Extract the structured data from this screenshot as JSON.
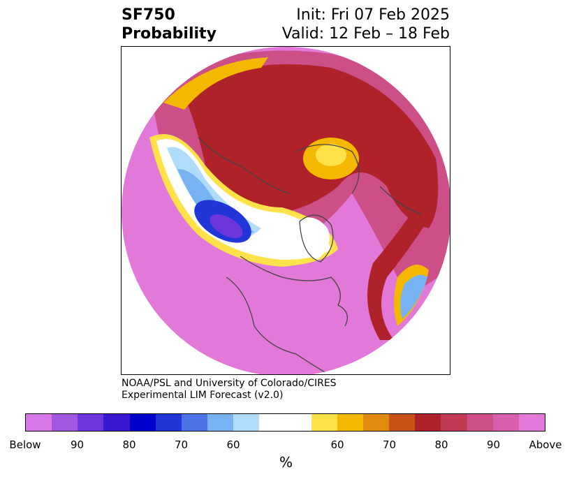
{
  "title": {
    "variable": "SF750",
    "subtitle": "Probability",
    "init": "Init: Fri 07 Feb 2025",
    "valid": "Valid: 12 Feb – 18 Feb"
  },
  "credit": {
    "line1": "NOAA/PSL and University of Colorado/CIRES",
    "line2": "Experimental LIM Forecast (v2.0)"
  },
  "colorbar": {
    "unit": "%",
    "colors": [
      "#d877e8",
      "#a257e0",
      "#6d36da",
      "#3a17d0",
      "#0000cc",
      "#2236d8",
      "#4d74e6",
      "#77b2f2",
      "#aedcfa",
      "#ffffff",
      "#ffe14a",
      "#f5b800",
      "#e08a10",
      "#c85318",
      "#b0222a",
      "#c33a55",
      "#cc4f88",
      "#d85fac",
      "#e278d8"
    ],
    "ticks": [
      "Below",
      "90",
      "80",
      "70",
      "60",
      "60",
      "70",
      "80",
      "90",
      "Above"
    ]
  },
  "map": {
    "projection": "polar stereographic (North Pole)",
    "colors": {
      "above_high": "#e278d8",
      "above_mid": "#cc4f88",
      "above_red": "#b0222a",
      "above_orange": "#e08a10",
      "above_yellow": "#f5b800",
      "near_normal": "#ffffff",
      "below_light": "#aedcfa",
      "below_mid": "#77b2f2",
      "below_deep": "#2236d8",
      "below_core": "#6d36da",
      "coast": "#444444"
    }
  }
}
